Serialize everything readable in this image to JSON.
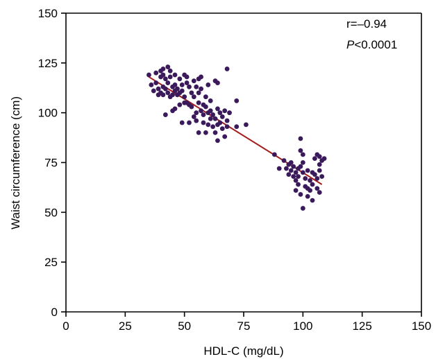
{
  "chart_data": {
    "type": "scatter",
    "xlabel": "HDL-C (mg/dL)",
    "ylabel": "Waist circumference (cm)",
    "xlim": [
      0,
      150
    ],
    "ylim": [
      0,
      150
    ],
    "x_ticks": [
      "0",
      "25",
      "50",
      "75",
      "100",
      "125",
      "150"
    ],
    "y_ticks": [
      "0",
      "25",
      "50",
      "75",
      "100",
      "125",
      "150"
    ],
    "grid": false,
    "annotations": {
      "r": "r=–0.94",
      "p_italic": "P",
      "p_rest": "<0.0001"
    },
    "colors": {
      "points": "#3b1a5c",
      "fit_line": "#a51c1c",
      "axis": "#000000"
    },
    "fit_line": {
      "x": [
        35,
        108
      ],
      "y": [
        118,
        64
      ]
    },
    "series": [
      {
        "points": [
          [
            35,
            119
          ],
          [
            36,
            114
          ],
          [
            37,
            111
          ],
          [
            38,
            120
          ],
          [
            38,
            115
          ],
          [
            39,
            112
          ],
          [
            39,
            109
          ],
          [
            40,
            121
          ],
          [
            40,
            118
          ],
          [
            40,
            110
          ],
          [
            41,
            122
          ],
          [
            41,
            119
          ],
          [
            41,
            113
          ],
          [
            41,
            109
          ],
          [
            42,
            117
          ],
          [
            42,
            112
          ],
          [
            42,
            99
          ],
          [
            43,
            123
          ],
          [
            43,
            115
          ],
          [
            43,
            110
          ],
          [
            44,
            121
          ],
          [
            44,
            118
          ],
          [
            44,
            108
          ],
          [
            45,
            113
          ],
          [
            45,
            109
          ],
          [
            45,
            101
          ],
          [
            46,
            119
          ],
          [
            46,
            114
          ],
          [
            46,
            111
          ],
          [
            46,
            102
          ],
          [
            47,
            112
          ],
          [
            47,
            109
          ],
          [
            48,
            117
          ],
          [
            48,
            110
          ],
          [
            48,
            104
          ],
          [
            49,
            114
          ],
          [
            49,
            111
          ],
          [
            49,
            95
          ],
          [
            50,
            119
          ],
          [
            50,
            108
          ],
          [
            50,
            105
          ],
          [
            51,
            118
          ],
          [
            51,
            115
          ],
          [
            51,
            105
          ],
          [
            52,
            113
          ],
          [
            52,
            104
          ],
          [
            52,
            95
          ],
          [
            53,
            110
          ],
          [
            53,
            103
          ],
          [
            54,
            116
          ],
          [
            54,
            108
          ],
          [
            54,
            98
          ],
          [
            55,
            113
          ],
          [
            55,
            100
          ],
          [
            55,
            96
          ],
          [
            56,
            117
          ],
          [
            56,
            110
          ],
          [
            56,
            105
          ],
          [
            56,
            90
          ],
          [
            57,
            118
          ],
          [
            57,
            112
          ],
          [
            57,
            101
          ],
          [
            58,
            104
          ],
          [
            58,
            99
          ],
          [
            58,
            95
          ],
          [
            59,
            108
          ],
          [
            59,
            103
          ],
          [
            59,
            90
          ],
          [
            60,
            114
          ],
          [
            60,
            100
          ],
          [
            60,
            94
          ],
          [
            61,
            106
          ],
          [
            61,
            101
          ],
          [
            61,
            97
          ],
          [
            62,
            99
          ],
          [
            62,
            93
          ],
          [
            63,
            116
          ],
          [
            63,
            97
          ],
          [
            63,
            90
          ],
          [
            64,
            115
          ],
          [
            64,
            102
          ],
          [
            64,
            94
          ],
          [
            64,
            86
          ],
          [
            65,
            100
          ],
          [
            65,
            95
          ],
          [
            66,
            98
          ],
          [
            66,
            92
          ],
          [
            67,
            88
          ],
          [
            67,
            101
          ],
          [
            68,
            122
          ],
          [
            68,
            96
          ],
          [
            68,
            93
          ],
          [
            69,
            100
          ],
          [
            72,
            106
          ],
          [
            72,
            93
          ],
          [
            76,
            94
          ],
          [
            88,
            79
          ],
          [
            90,
            72
          ],
          [
            92,
            76
          ],
          [
            93,
            72
          ],
          [
            94,
            74
          ],
          [
            94,
            69
          ],
          [
            95,
            75
          ],
          [
            95,
            71
          ],
          [
            96,
            68
          ],
          [
            96,
            73
          ],
          [
            97,
            70
          ],
          [
            97,
            66
          ],
          [
            97,
            61
          ],
          [
            98,
            72
          ],
          [
            98,
            68
          ],
          [
            98,
            64
          ],
          [
            99,
            87
          ],
          [
            99,
            81
          ],
          [
            99,
            73
          ],
          [
            99,
            59
          ],
          [
            100,
            79
          ],
          [
            100,
            75
          ],
          [
            100,
            70
          ],
          [
            100,
            52
          ],
          [
            101,
            67
          ],
          [
            101,
            63
          ],
          [
            102,
            71
          ],
          [
            102,
            62
          ],
          [
            102,
            58
          ],
          [
            103,
            66
          ],
          [
            103,
            61
          ],
          [
            104,
            70
          ],
          [
            104,
            64
          ],
          [
            104,
            56
          ],
          [
            105,
            77
          ],
          [
            105,
            69
          ],
          [
            106,
            79
          ],
          [
            106,
            67
          ],
          [
            106,
            62
          ],
          [
            107,
            78
          ],
          [
            107,
            74
          ],
          [
            107,
            71
          ],
          [
            107,
            60
          ],
          [
            108,
            76
          ],
          [
            108,
            68
          ],
          [
            109,
            77
          ]
        ]
      }
    ]
  }
}
